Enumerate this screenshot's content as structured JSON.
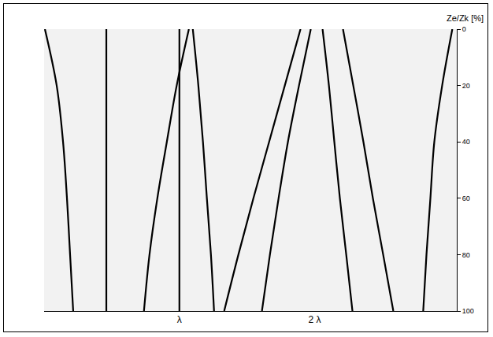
{
  "chart_data": {
    "type": "line",
    "y_label": "Ze/Zk [%]",
    "y": [
      0,
      20,
      40,
      60,
      80,
      100
    ],
    "series": [
      {
        "color": "#000000",
        "x": [
          0.006,
          0.093,
          0.14,
          0.169,
          0.192,
          0.215
        ]
      },
      {
        "color": "#000000",
        "x": [
          0.46,
          0.46,
          0.46,
          0.46,
          0.46,
          0.46
        ]
      },
      {
        "color": "#000000",
        "x": [
          1.07,
          0.98,
          0.907,
          0.837,
          0.779,
          0.738
        ]
      },
      {
        "color": "#000000",
        "x": [
          1.0,
          1.0,
          1.0,
          1.0,
          1.0,
          1.0
        ]
      },
      {
        "color": "#000000",
        "x": [
          1.099,
          1.14,
          1.174,
          1.203,
          1.233,
          1.256
        ]
      },
      {
        "color": "#000000",
        "x": [
          1.971,
          1.884,
          1.802,
          1.733,
          1.669,
          1.61
        ]
      },
      {
        "color": "#000000",
        "x": [
          2.058,
          2.105,
          2.145,
          2.186,
          2.233,
          2.279
        ]
      },
      {
        "color": "#000000",
        "x": [
          1.895,
          1.779,
          1.663,
          1.547,
          1.436,
          1.331
        ]
      },
      {
        "color": "#000000",
        "x": [
          2.209,
          2.285,
          2.36,
          2.43,
          2.506,
          2.581
        ]
      },
      {
        "color": "#000000",
        "x": [
          3.017,
          2.942,
          2.884,
          2.855,
          2.826,
          2.802
        ]
      }
    ],
    "xlim": [
      0,
      3.05
    ],
    "xticks": [
      {
        "value": 1,
        "label": "λ"
      },
      {
        "value": 2,
        "label": "2 λ"
      }
    ],
    "ylim": [
      100,
      0
    ],
    "yticks": [
      0,
      20,
      40,
      60,
      80,
      100
    ],
    "grid": false
  }
}
